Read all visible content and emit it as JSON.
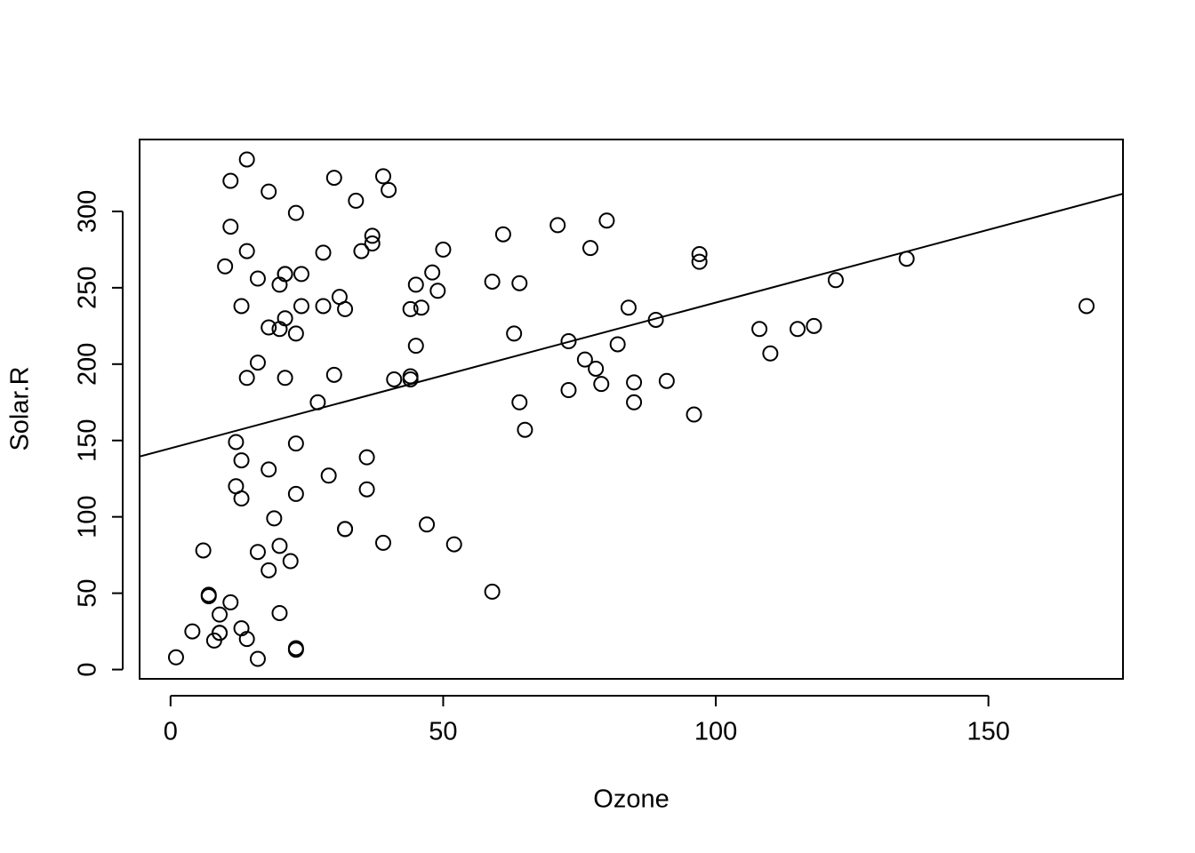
{
  "chart_data": {
    "type": "scatter",
    "xlabel": "Ozone",
    "ylabel": "Solar.R",
    "x": [
      41,
      36,
      12,
      18,
      23,
      19,
      8,
      16,
      11,
      14,
      18,
      14,
      34,
      6,
      30,
      11,
      1,
      11,
      4,
      32,
      23,
      45,
      115,
      37,
      29,
      71,
      39,
      23,
      21,
      37,
      20,
      12,
      13,
      135,
      49,
      32,
      64,
      40,
      77,
      97,
      97,
      85,
      10,
      27,
      7,
      48,
      35,
      61,
      79,
      63,
      16,
      80,
      108,
      20,
      52,
      82,
      50,
      64,
      59,
      39,
      9,
      16,
      122,
      89,
      110,
      44,
      28,
      65,
      22,
      59,
      23,
      31,
      44,
      21,
      9,
      45,
      168,
      73,
      76,
      118,
      84,
      85,
      96,
      78,
      73,
      91,
      47,
      32,
      20,
      23,
      21,
      24,
      44,
      21,
      28,
      9,
      13,
      46,
      18,
      13,
      24,
      16,
      13,
      23,
      36,
      7,
      14,
      30,
      14,
      18,
      20
    ],
    "values": [
      190,
      118,
      149,
      313,
      299,
      99,
      19,
      256,
      290,
      274,
      65,
      334,
      307,
      78,
      322,
      44,
      8,
      320,
      25,
      92,
      13,
      252,
      223,
      279,
      127,
      291,
      323,
      148,
      191,
      284,
      37,
      120,
      137,
      269,
      248,
      236,
      175,
      314,
      276,
      267,
      272,
      175,
      264,
      175,
      48,
      260,
      274,
      285,
      187,
      220,
      7,
      294,
      223,
      81,
      82,
      213,
      275,
      253,
      254,
      83,
      24,
      77,
      255,
      229,
      207,
      192,
      273,
      157,
      71,
      51,
      115,
      244,
      190,
      259,
      36,
      212,
      238,
      215,
      203,
      225,
      237,
      188,
      167,
      197,
      183,
      189,
      95,
      92,
      252,
      220,
      230,
      259,
      236,
      259,
      238,
      24,
      112,
      237,
      224,
      27,
      238,
      201,
      238,
      14,
      139,
      49,
      20,
      193,
      191,
      131,
      223
    ],
    "color": "#000000",
    "regression": {
      "intercept": 144.9,
      "slope": 0.954
    },
    "xlim": [
      -5.68,
      174.68
    ],
    "xticks": [
      0,
      50,
      100,
      150
    ],
    "ylim": [
      -6.08,
      347.08
    ],
    "yticks": [
      0,
      50,
      100,
      150,
      200,
      250,
      300
    ],
    "grid": false
  }
}
